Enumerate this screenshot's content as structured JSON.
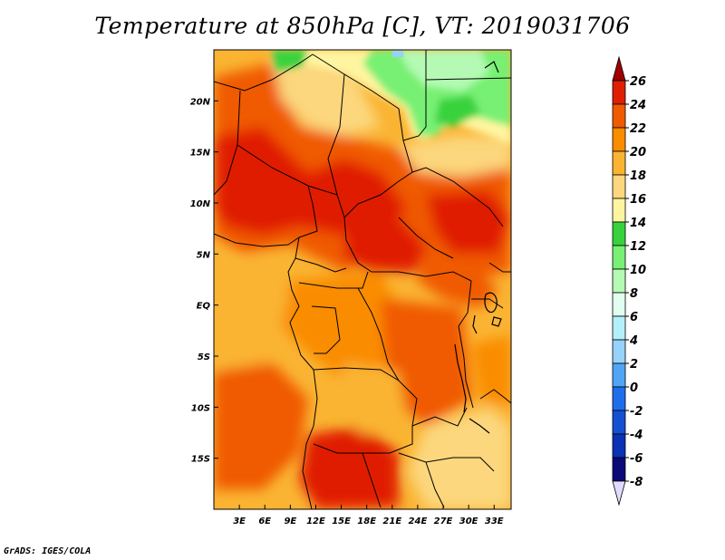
{
  "title": "Temperature at 850hPa [C], VT: 2019031706",
  "footer": "GrADS: IGES/COLA",
  "map": {
    "lon_range": [
      0,
      35
    ],
    "lat_range": [
      -20,
      25
    ],
    "x_ticks": [
      "3E",
      "6E",
      "9E",
      "12E",
      "15E",
      "18E",
      "21E",
      "24E",
      "27E",
      "30E",
      "33E"
    ],
    "x_tick_values": [
      3,
      6,
      9,
      12,
      15,
      18,
      21,
      24,
      27,
      30,
      33
    ],
    "y_ticks": [
      "20N",
      "15N",
      "10N",
      "5N",
      "EQ",
      "5S",
      "10S",
      "15S"
    ],
    "y_tick_values": [
      20,
      15,
      10,
      5,
      0,
      -5,
      -10,
      -15
    ]
  },
  "colorbar": {
    "labels": [
      "26",
      "24",
      "22",
      "20",
      "18",
      "16",
      "14",
      "12",
      "10",
      "8",
      "6",
      "4",
      "2",
      "0",
      "-2",
      "-4",
      "-6",
      "-8"
    ],
    "colors": [
      "#a00000",
      "#e01e00",
      "#f05a00",
      "#fa8c00",
      "#fab432",
      "#fcd77d",
      "#fff5a0",
      "#37d23c",
      "#78f073",
      "#b4fab4",
      "#e1fff0",
      "#b4f0fa",
      "#96d2fa",
      "#50a5f5",
      "#1e6eeb",
      "#1450d2",
      "#0a32b4",
      "#0a0a78",
      "#e1dcff"
    ]
  }
}
